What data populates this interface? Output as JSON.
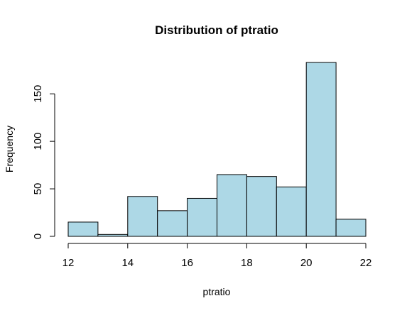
{
  "chart_data": {
    "type": "bar",
    "title": "Distribution of ptratio",
    "xlabel": "ptratio",
    "ylabel": "Frequency",
    "bins": [
      {
        "x0": 12,
        "x1": 13,
        "count": 15
      },
      {
        "x0": 13,
        "x1": 14,
        "count": 2
      },
      {
        "x0": 14,
        "x1": 15,
        "count": 42
      },
      {
        "x0": 15,
        "x1": 16,
        "count": 27
      },
      {
        "x0": 16,
        "x1": 17,
        "count": 40
      },
      {
        "x0": 17,
        "x1": 18,
        "count": 65
      },
      {
        "x0": 18,
        "x1": 19,
        "count": 63
      },
      {
        "x0": 19,
        "x1": 20,
        "count": 52
      },
      {
        "x0": 20,
        "x1": 21,
        "count": 183
      },
      {
        "x0": 21,
        "x1": 22,
        "count": 18
      }
    ],
    "xlim": [
      12,
      22
    ],
    "ylim": [
      0,
      183
    ],
    "xticks": [
      12,
      14,
      16,
      18,
      20,
      22
    ],
    "yticks": [
      0,
      50,
      100,
      150
    ],
    "bar_fill": "#add8e6",
    "bar_stroke": "#000000",
    "grid": false,
    "legend": "none"
  }
}
